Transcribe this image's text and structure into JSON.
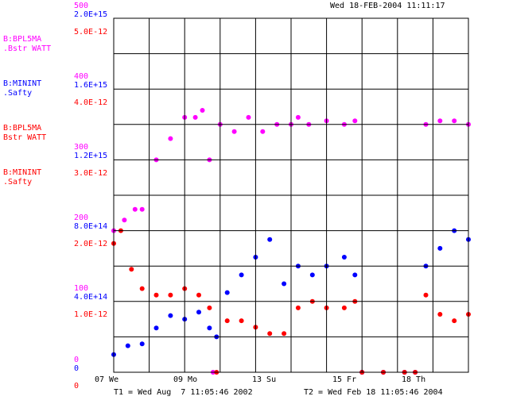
{
  "timestamp": "Wed 18-FEB-2004 11:11:17",
  "t1_label": "T1 = Wed Aug  7 11:05:46 2002",
  "t2_label": "T2 = Wed Feb 18 11:05:46 2004",
  "colors": {
    "magenta": "#ff00ff",
    "blue": "#0000ff",
    "red": "#ff0000",
    "grid": "#000000",
    "background": "#ffffff"
  },
  "legend": [
    {
      "line1": "B:BPL5MA",
      "line2": ".Bstr  WATT",
      "color": "#ff00ff"
    },
    {
      "line1": "B:MININT",
      "line2": ".Safty",
      "color": "#0000ff"
    },
    {
      "line1": "B:BPL5MA",
      "line2": " Bstr  WATT",
      "color": "#ff0000"
    },
    {
      "line1": "B:MININT",
      "line2": ".Safty",
      "color": "#ff0000"
    }
  ],
  "chart_data": {
    "type": "scatter",
    "grid": true,
    "x_tick_labels": [
      "07 We",
      "09 Mo",
      "13 Su",
      "15 Fr",
      "18 Th"
    ],
    "axes": [
      {
        "color": "#ff00ff",
        "ylim": [
          0,
          500
        ],
        "tick_labels": [
          "0",
          "100",
          "200",
          "300",
          "400",
          "500"
        ]
      },
      {
        "color": "#0000ff",
        "ylim": [
          0,
          2000000000000000.0
        ],
        "tick_labels": [
          "0",
          "4.0E+14",
          "8.0E+14",
          "1.2E+15",
          "1.6E+15",
          "2.0E+15"
        ]
      },
      {
        "color": "#ff0000",
        "ylim": [
          0,
          5.5e-12
        ],
        "tick_labels": [
          "1.0E-12",
          "2.0E-12",
          "3.0E-12",
          "4.0E-12",
          "5.0E-12"
        ]
      },
      {
        "color": "#ff0000",
        "tick_labels": [
          "0"
        ]
      }
    ],
    "series": [
      {
        "name": "B:BPL5MA .Bstr WATT",
        "color": "#ff00ff",
        "axis": 0,
        "x": [
          0.0,
          0.03,
          0.06,
          0.08,
          0.12,
          0.16,
          0.2,
          0.23,
          0.25,
          0.27,
          0.28,
          0.3,
          0.34,
          0.38,
          0.42,
          0.46,
          0.5,
          0.52,
          0.55,
          0.6,
          0.65,
          0.68,
          0.7,
          0.76,
          0.82,
          0.85,
          0.88,
          0.92,
          0.96,
          1.0
        ],
        "y": [
          200,
          215,
          230,
          230,
          300,
          330,
          360,
          360,
          370,
          300,
          0,
          350,
          340,
          360,
          340,
          350,
          350,
          360,
          350,
          355,
          350,
          355,
          0,
          0,
          0,
          0,
          350,
          355,
          355,
          350
        ]
      },
      {
        "name": "B:MININT .Safty",
        "color": "#0000ff",
        "axis": 1,
        "x": [
          0.0,
          0.04,
          0.08,
          0.12,
          0.16,
          0.2,
          0.24,
          0.27,
          0.29,
          0.32,
          0.36,
          0.4,
          0.44,
          0.48,
          0.52,
          0.56,
          0.6,
          0.65,
          0.68,
          0.7,
          0.76,
          0.82,
          0.85,
          0.88,
          0.92,
          0.96,
          1.0
        ],
        "y": [
          100000000000000.0,
          150000000000000.0,
          160000000000000.0,
          250000000000000.0,
          320000000000000.0,
          300000000000000.0,
          340000000000000.0,
          250000000000000.0,
          200000000000000.0,
          450000000000000.0,
          550000000000000.0,
          650000000000000.0,
          750000000000000.0,
          500000000000000.0,
          600000000000000.0,
          550000000000000.0,
          600000000000000.0,
          650000000000000.0,
          550000000000000.0,
          0,
          0,
          0,
          0,
          600000000000000.0,
          700000000000000.0,
          800000000000000.0,
          750000000000000.0
        ]
      },
      {
        "name": "B:BPL5MA Bstr WATT",
        "color": "#ff0000",
        "axis": 2,
        "x": [
          0.0,
          0.02,
          0.05,
          0.08,
          0.12,
          0.16,
          0.2,
          0.24,
          0.27,
          0.29,
          0.32,
          0.36,
          0.4,
          0.44,
          0.48,
          0.52,
          0.56,
          0.6,
          0.65,
          0.68,
          0.7,
          0.76,
          0.82,
          0.85,
          0.88,
          0.92,
          0.96,
          1.0
        ],
        "y": [
          2e-12,
          2.2e-12,
          1.6e-12,
          1.3e-12,
          1.2e-12,
          1.2e-12,
          1.3e-12,
          1.2e-12,
          1e-12,
          0,
          8e-13,
          8e-13,
          7e-13,
          6e-13,
          6e-13,
          1e-12,
          1.1e-12,
          1e-12,
          1e-12,
          1.1e-12,
          0,
          0,
          0,
          0,
          1.2e-12,
          9e-13,
          8e-13,
          9e-13
        ]
      }
    ]
  }
}
